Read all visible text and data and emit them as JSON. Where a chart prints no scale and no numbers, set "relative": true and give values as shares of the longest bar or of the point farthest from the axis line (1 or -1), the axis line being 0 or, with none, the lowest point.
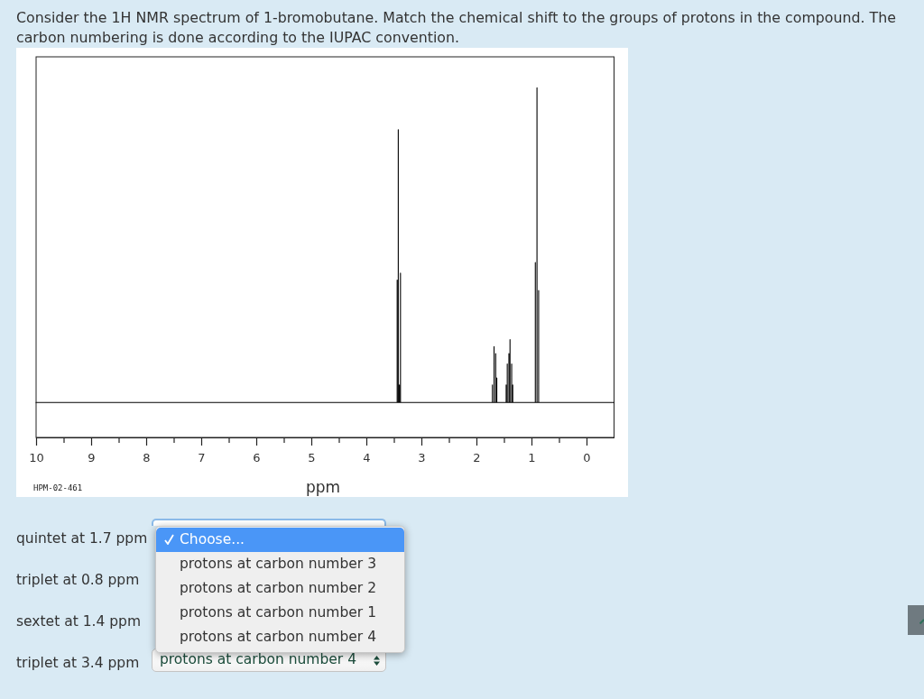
{
  "chart_data": {
    "type": "line",
    "title": "Consider the 1H NMR spectrum of 1-bromobutane. Match the chemical shift to the groups of protons in the compound. The carbon numbering is done according to the IUPAC convention.",
    "xlabel": "ppm",
    "relative": true,
    "x": [
      10,
      3.44,
      3.44,
      3.44,
      3.42,
      3.42,
      3.42,
      3.4,
      3.4,
      3.4,
      3.38,
      3.38,
      3.38,
      1.71,
      1.71,
      1.71,
      1.68,
      1.68,
      1.68,
      1.65,
      1.65,
      1.65,
      1.63,
      1.63,
      1.63,
      1.46,
      1.46,
      1.46,
      1.44,
      1.44,
      1.44,
      1.41,
      1.41,
      1.41,
      1.39,
      1.39,
      1.39,
      1.36,
      1.36,
      1.36,
      1.34,
      1.34,
      1.34,
      0.93,
      0.93,
      0.93,
      0.9,
      0.9,
      0.9,
      0.87,
      0.87,
      0.87,
      -0.5
    ],
    "series": [
      {
        "color": "#000000",
        "values": [
          0.1,
          0.1,
          0.45,
          0.1,
          0.1,
          0.88,
          0.1,
          0.1,
          0.15,
          0.1,
          0.1,
          0.47,
          0.1,
          0.1,
          0.15,
          0.1,
          0.1,
          0.26,
          0.1,
          0.1,
          0.24,
          0.1,
          0.1,
          0.17,
          0.1,
          0.1,
          0.15,
          0.1,
          0.1,
          0.21,
          0.1,
          0.1,
          0.24,
          0.1,
          0.1,
          0.28,
          0.1,
          0.1,
          0.21,
          0.1,
          0.1,
          0.15,
          0.1,
          0.1,
          0.5,
          0.1,
          0.1,
          1,
          0.1,
          0.1,
          0.42,
          0.1,
          0.1
        ]
      }
    ],
    "xlim": [
      10,
      -0.5
    ],
    "xticks": [
      10,
      {
        "value": 9.5,
        "label": null
      },
      9,
      {
        "value": 8.5,
        "label": null
      },
      8,
      {
        "value": 7.5,
        "label": null
      },
      7,
      {
        "value": 6.5,
        "label": null
      },
      6,
      {
        "value": 5.5,
        "label": null
      },
      5,
      {
        "value": 4.5,
        "label": null
      },
      4,
      {
        "value": 3.5,
        "label": null
      },
      3,
      {
        "value": 2.5,
        "label": null
      },
      2,
      {
        "value": 1.5,
        "label": null
      },
      1,
      {
        "value": 0.5,
        "label": null
      },
      0
    ],
    "annotations": [
      "HPM-02-461",
      "quintet at 1.7 ppm",
      "triplet at 0.8 ppm",
      "sextet at 1.4 ppm",
      "triplet at 3.4 ppm",
      "Choose...",
      "protons at carbon number 3",
      "protons at carbon number 2",
      "protons at carbon number 1",
      "protons at carbon number 4",
      "protons at carbon number 4"
    ]
  }
}
